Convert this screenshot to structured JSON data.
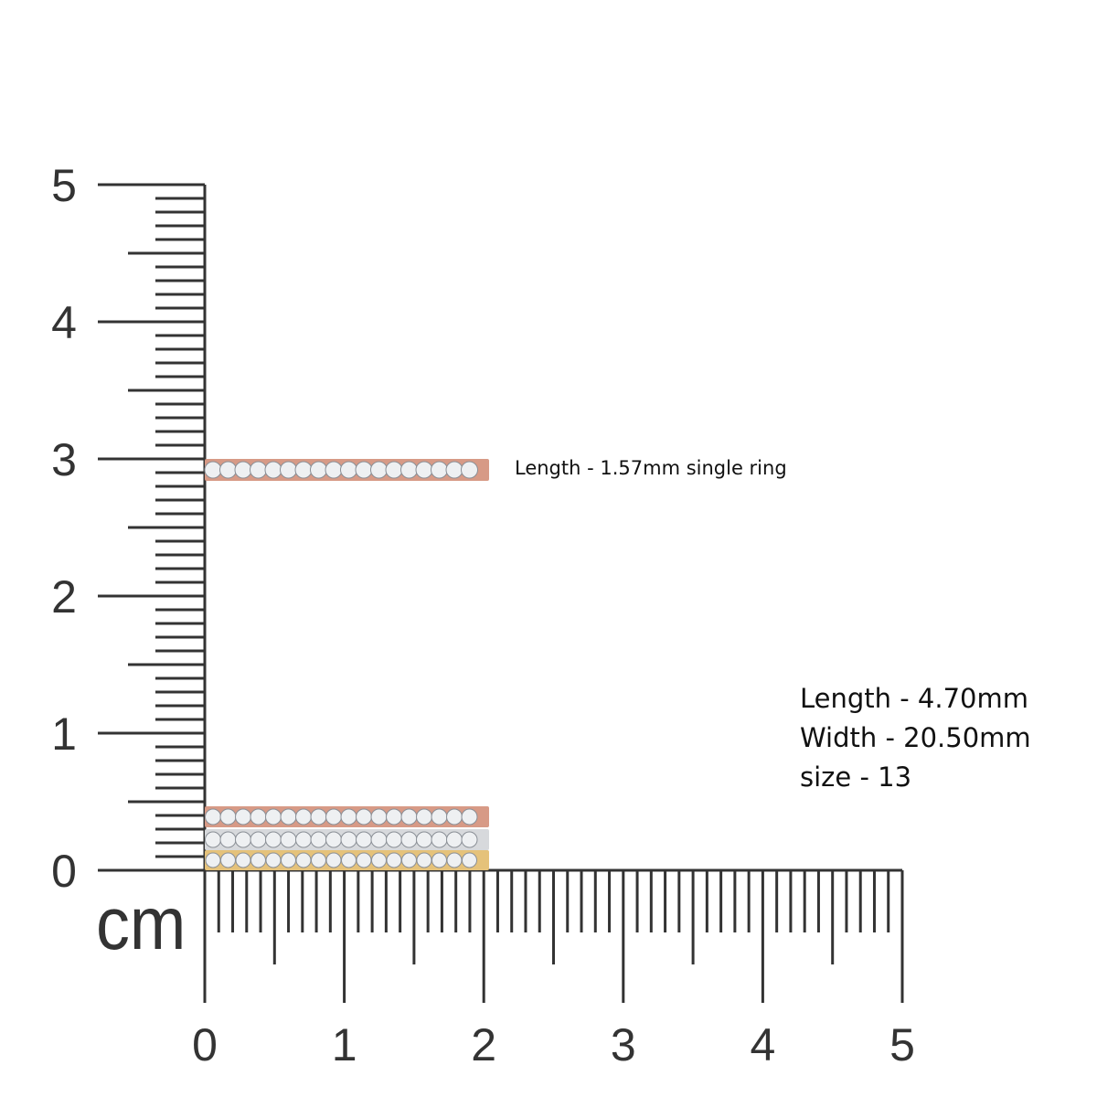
{
  "ruler": {
    "unit": "cm",
    "vertical_labels": [
      "0",
      "1",
      "2",
      "3",
      "4",
      "5"
    ],
    "horizontal_labels": [
      "0",
      "1",
      "2",
      "3",
      "4",
      "5"
    ]
  },
  "single_ring": {
    "note": "Length - 1.57mm single ring"
  },
  "set_specs": [
    "Length - 4.70mm",
    "Width - 20.50mm",
    "size - 13"
  ]
}
